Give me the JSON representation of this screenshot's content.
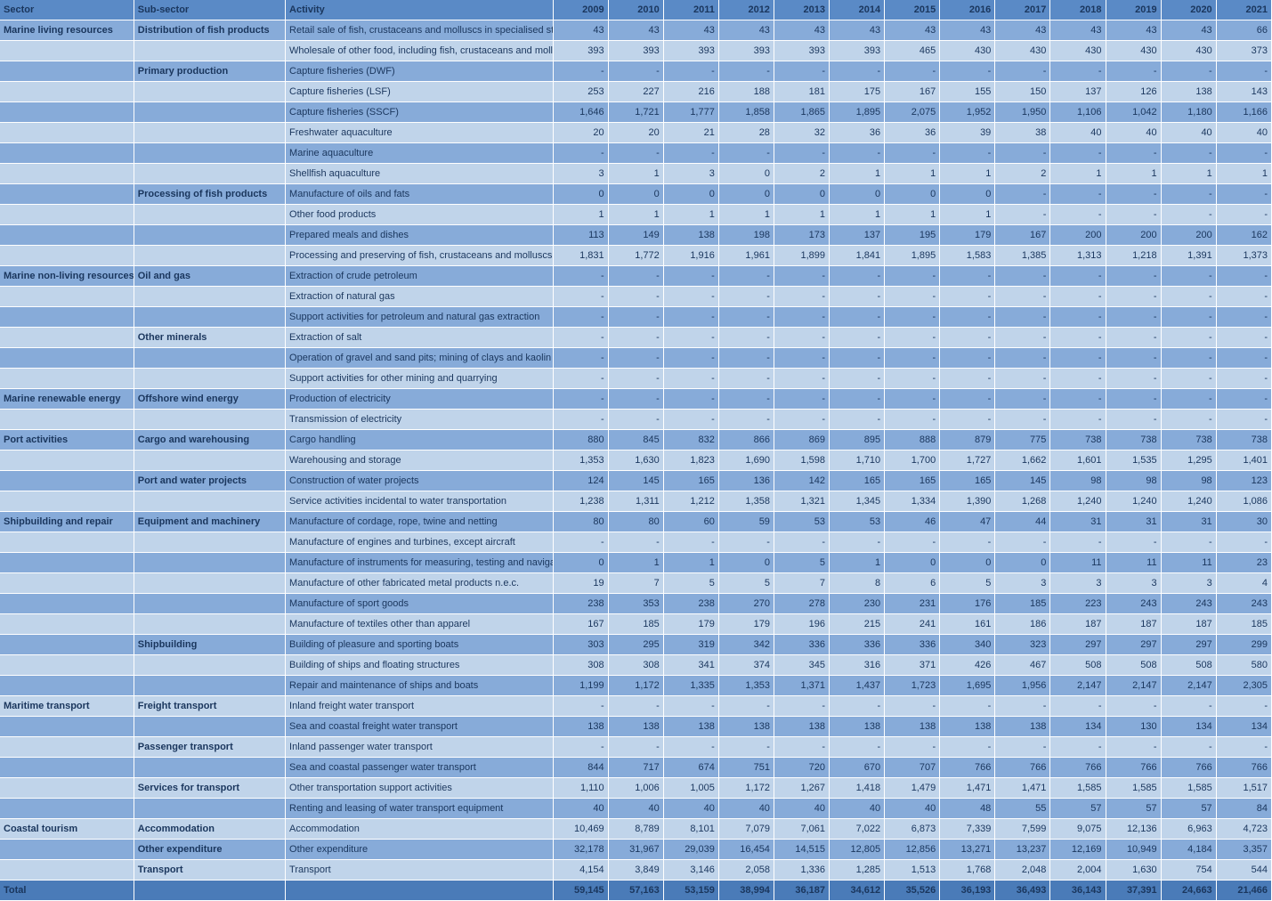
{
  "colors": {
    "header_bg": "#5a8ac6",
    "header_fg": "#1a365d",
    "row_dark_bg": "#87abd9",
    "row_light_bg": "#c0d4ea",
    "total_bg": "#4a7bb8",
    "cell_fg": "#1a365d",
    "bold_fg": "#1a365d"
  },
  "headers": {
    "sector": "Sector",
    "sub": "Sub-sector",
    "activity": "Activity",
    "years": [
      "2009",
      "2010",
      "2011",
      "2012",
      "2013",
      "2014",
      "2015",
      "2016",
      "2017",
      "2018",
      "2019",
      "2020",
      "2021"
    ]
  },
  "rows": [
    {
      "sector": "Marine living resources",
      "sub": "Distribution of fish products",
      "activity": "Retail sale of fish, crustaceans and molluscs in specialised stores",
      "vals": [
        "43",
        "43",
        "43",
        "43",
        "43",
        "43",
        "43",
        "43",
        "43",
        "43",
        "43",
        "43",
        "66"
      ]
    },
    {
      "sector": "",
      "sub": "",
      "activity": "Wholesale of other food, including fish, crustaceans and molluscs",
      "vals": [
        "393",
        "393",
        "393",
        "393",
        "393",
        "393",
        "465",
        "430",
        "430",
        "430",
        "430",
        "430",
        "373"
      ]
    },
    {
      "sector": "",
      "sub": "Primary production",
      "activity": "Capture fisheries (DWF)",
      "vals": [
        "-",
        "-",
        "-",
        "-",
        "-",
        "-",
        "-",
        "-",
        "-",
        "-",
        "-",
        "-",
        "-"
      ]
    },
    {
      "sector": "",
      "sub": "",
      "activity": "Capture fisheries (LSF)",
      "vals": [
        "253",
        "227",
        "216",
        "188",
        "181",
        "175",
        "167",
        "155",
        "150",
        "137",
        "126",
        "138",
        "143"
      ]
    },
    {
      "sector": "",
      "sub": "",
      "activity": "Capture fisheries (SSCF)",
      "vals": [
        "1,646",
        "1,721",
        "1,777",
        "1,858",
        "1,865",
        "1,895",
        "2,075",
        "1,952",
        "1,950",
        "1,106",
        "1,042",
        "1,180",
        "1,166"
      ]
    },
    {
      "sector": "",
      "sub": "",
      "activity": "Freshwater aquaculture",
      "vals": [
        "20",
        "20",
        "21",
        "28",
        "32",
        "36",
        "36",
        "39",
        "38",
        "40",
        "40",
        "40",
        "40"
      ]
    },
    {
      "sector": "",
      "sub": "",
      "activity": "Marine aquaculture",
      "vals": [
        "-",
        "-",
        "-",
        "-",
        "-",
        "-",
        "-",
        "-",
        "-",
        "-",
        "-",
        "-",
        "-"
      ]
    },
    {
      "sector": "",
      "sub": "",
      "activity": "Shellfish aquaculture",
      "vals": [
        "3",
        "1",
        "3",
        "0",
        "2",
        "1",
        "1",
        "1",
        "2",
        "1",
        "1",
        "1",
        "1"
      ]
    },
    {
      "sector": "",
      "sub": "Processing of fish products",
      "activity": "Manufacture of oils and fats",
      "vals": [
        "0",
        "0",
        "0",
        "0",
        "0",
        "0",
        "0",
        "0",
        "-",
        "-",
        "-",
        "-",
        "-"
      ]
    },
    {
      "sector": "",
      "sub": "",
      "activity": "Other food products",
      "vals": [
        "1",
        "1",
        "1",
        "1",
        "1",
        "1",
        "1",
        "1",
        "-",
        "-",
        "-",
        "-",
        "-"
      ]
    },
    {
      "sector": "",
      "sub": "",
      "activity": "Prepared meals and dishes",
      "vals": [
        "113",
        "149",
        "138",
        "198",
        "173",
        "137",
        "195",
        "179",
        "167",
        "200",
        "200",
        "200",
        "162"
      ]
    },
    {
      "sector": "",
      "sub": "",
      "activity": "Processing and preserving of fish, crustaceans and molluscs",
      "vals": [
        "1,831",
        "1,772",
        "1,916",
        "1,961",
        "1,899",
        "1,841",
        "1,895",
        "1,583",
        "1,385",
        "1,313",
        "1,218",
        "1,391",
        "1,373"
      ]
    },
    {
      "sector": "Marine non-living resources",
      "sub": "Oil and gas",
      "activity": "Extraction of crude petroleum",
      "vals": [
        "-",
        "-",
        "-",
        "-",
        "-",
        "-",
        "-",
        "-",
        "-",
        "-",
        "-",
        "-",
        "-"
      ]
    },
    {
      "sector": "",
      "sub": "",
      "activity": "Extraction of natural gas",
      "vals": [
        "-",
        "-",
        "-",
        "-",
        "-",
        "-",
        "-",
        "-",
        "-",
        "-",
        "-",
        "-",
        "-"
      ]
    },
    {
      "sector": "",
      "sub": "",
      "activity": "Support activities for petroleum and natural gas extraction",
      "vals": [
        "-",
        "-",
        "-",
        "-",
        "-",
        "-",
        "-",
        "-",
        "-",
        "-",
        "-",
        "-",
        "-"
      ]
    },
    {
      "sector": "",
      "sub": "Other minerals",
      "activity": "Extraction of salt",
      "vals": [
        "-",
        "-",
        "-",
        "-",
        "-",
        "-",
        "-",
        "-",
        "-",
        "-",
        "-",
        "-",
        "-"
      ]
    },
    {
      "sector": "",
      "sub": "",
      "activity": "Operation of gravel and sand pits; mining of clays and kaolin",
      "vals": [
        "-",
        "-",
        "-",
        "-",
        "-",
        "-",
        "-",
        "-",
        "-",
        "-",
        "-",
        "-",
        "-"
      ]
    },
    {
      "sector": "",
      "sub": "",
      "activity": "Support activities for other mining and quarrying",
      "vals": [
        "-",
        "-",
        "-",
        "-",
        "-",
        "-",
        "-",
        "-",
        "-",
        "-",
        "-",
        "-",
        "-"
      ]
    },
    {
      "sector": "Marine renewable energy",
      "sub": "Offshore wind energy",
      "activity": "Production of electricity",
      "vals": [
        "-",
        "-",
        "-",
        "-",
        "-",
        "-",
        "-",
        "-",
        "-",
        "-",
        "-",
        "-",
        "-"
      ]
    },
    {
      "sector": "",
      "sub": "",
      "activity": "Transmission of electricity",
      "vals": [
        "-",
        "-",
        "-",
        "-",
        "-",
        "-",
        "-",
        "-",
        "-",
        "-",
        "-",
        "-",
        "-"
      ]
    },
    {
      "sector": "Port activities",
      "sub": "Cargo and warehousing",
      "activity": "Cargo handling",
      "vals": [
        "880",
        "845",
        "832",
        "866",
        "869",
        "895",
        "888",
        "879",
        "775",
        "738",
        "738",
        "738",
        "738"
      ]
    },
    {
      "sector": "",
      "sub": "",
      "activity": "Warehousing and storage",
      "vals": [
        "1,353",
        "1,630",
        "1,823",
        "1,690",
        "1,598",
        "1,710",
        "1,700",
        "1,727",
        "1,662",
        "1,601",
        "1,535",
        "1,295",
        "1,401"
      ]
    },
    {
      "sector": "",
      "sub": "Port and water projects",
      "activity": "Construction of water projects",
      "vals": [
        "124",
        "145",
        "165",
        "136",
        "142",
        "165",
        "165",
        "165",
        "145",
        "98",
        "98",
        "98",
        "123"
      ]
    },
    {
      "sector": "",
      "sub": "",
      "activity": "Service activities incidental to water transportation",
      "vals": [
        "1,238",
        "1,311",
        "1,212",
        "1,358",
        "1,321",
        "1,345",
        "1,334",
        "1,390",
        "1,268",
        "1,240",
        "1,240",
        "1,240",
        "1,086"
      ]
    },
    {
      "sector": "Shipbuilding and repair",
      "sub": "Equipment and machinery",
      "activity": "Manufacture of cordage, rope, twine and netting",
      "vals": [
        "80",
        "80",
        "60",
        "59",
        "53",
        "53",
        "46",
        "47",
        "44",
        "31",
        "31",
        "31",
        "30"
      ]
    },
    {
      "sector": "",
      "sub": "",
      "activity": "Manufacture of engines and turbines, except aircraft",
      "vals": [
        "-",
        "-",
        "-",
        "-",
        "-",
        "-",
        "-",
        "-",
        "-",
        "-",
        "-",
        "-",
        "-"
      ]
    },
    {
      "sector": "",
      "sub": "",
      "activity": "Manufacture of instruments for measuring, testing and navigation",
      "vals": [
        "0",
        "1",
        "1",
        "0",
        "5",
        "1",
        "0",
        "0",
        "0",
        "11",
        "11",
        "11",
        "23"
      ]
    },
    {
      "sector": "",
      "sub": "",
      "activity": "Manufacture of other fabricated metal products n.e.c.",
      "vals": [
        "19",
        "7",
        "5",
        "5",
        "7",
        "8",
        "6",
        "5",
        "3",
        "3",
        "3",
        "3",
        "4"
      ]
    },
    {
      "sector": "",
      "sub": "",
      "activity": "Manufacture of sport goods",
      "vals": [
        "238",
        "353",
        "238",
        "270",
        "278",
        "230",
        "231",
        "176",
        "185",
        "223",
        "243",
        "243",
        "243"
      ]
    },
    {
      "sector": "",
      "sub": "",
      "activity": "Manufacture of textiles other than apparel",
      "vals": [
        "167",
        "185",
        "179",
        "179",
        "196",
        "215",
        "241",
        "161",
        "186",
        "187",
        "187",
        "187",
        "185"
      ]
    },
    {
      "sector": "",
      "sub": "Shipbuilding",
      "activity": "Building of pleasure and sporting boats",
      "vals": [
        "303",
        "295",
        "319",
        "342",
        "336",
        "336",
        "336",
        "340",
        "323",
        "297",
        "297",
        "297",
        "299"
      ]
    },
    {
      "sector": "",
      "sub": "",
      "activity": "Building of ships and floating structures",
      "vals": [
        "308",
        "308",
        "341",
        "374",
        "345",
        "316",
        "371",
        "426",
        "467",
        "508",
        "508",
        "508",
        "580"
      ]
    },
    {
      "sector": "",
      "sub": "",
      "activity": "Repair and maintenance of ships and boats",
      "vals": [
        "1,199",
        "1,172",
        "1,335",
        "1,353",
        "1,371",
        "1,437",
        "1,723",
        "1,695",
        "1,956",
        "2,147",
        "2,147",
        "2,147",
        "2,305"
      ]
    },
    {
      "sector": "Maritime transport",
      "sub": "Freight transport",
      "activity": "Inland freight water transport",
      "vals": [
        "-",
        "-",
        "-",
        "-",
        "-",
        "-",
        "-",
        "-",
        "-",
        "-",
        "-",
        "-",
        "-"
      ]
    },
    {
      "sector": "",
      "sub": "",
      "activity": "Sea and coastal freight water transport",
      "vals": [
        "138",
        "138",
        "138",
        "138",
        "138",
        "138",
        "138",
        "138",
        "138",
        "134",
        "130",
        "134",
        "134"
      ]
    },
    {
      "sector": "",
      "sub": "Passenger transport",
      "activity": "Inland passenger water transport",
      "vals": [
        "-",
        "-",
        "-",
        "-",
        "-",
        "-",
        "-",
        "-",
        "-",
        "-",
        "-",
        "-",
        "-"
      ]
    },
    {
      "sector": "",
      "sub": "",
      "activity": "Sea and coastal passenger water transport",
      "vals": [
        "844",
        "717",
        "674",
        "751",
        "720",
        "670",
        "707",
        "766",
        "766",
        "766",
        "766",
        "766",
        "766"
      ]
    },
    {
      "sector": "",
      "sub": "Services for transport",
      "activity": "Other transportation support activities",
      "vals": [
        "1,110",
        "1,006",
        "1,005",
        "1,172",
        "1,267",
        "1,418",
        "1,479",
        "1,471",
        "1,471",
        "1,585",
        "1,585",
        "1,585",
        "1,517"
      ]
    },
    {
      "sector": "",
      "sub": "",
      "activity": "Renting and leasing of water transport equipment",
      "vals": [
        "40",
        "40",
        "40",
        "40",
        "40",
        "40",
        "40",
        "48",
        "55",
        "57",
        "57",
        "57",
        "84"
      ]
    },
    {
      "sector": "Coastal tourism",
      "sub": "Accommodation",
      "activity": "Accommodation",
      "vals": [
        "10,469",
        "8,789",
        "8,101",
        "7,079",
        "7,061",
        "7,022",
        "6,873",
        "7,339",
        "7,599",
        "9,075",
        "12,136",
        "6,963",
        "4,723"
      ]
    },
    {
      "sector": "",
      "sub": "Other expenditure",
      "activity": "Other expenditure",
      "vals": [
        "32,178",
        "31,967",
        "29,039",
        "16,454",
        "14,515",
        "12,805",
        "12,856",
        "13,271",
        "13,237",
        "12,169",
        "10,949",
        "4,184",
        "3,357"
      ]
    },
    {
      "sector": "",
      "sub": "Transport",
      "activity": "Transport",
      "vals": [
        "4,154",
        "3,849",
        "3,146",
        "2,058",
        "1,336",
        "1,285",
        "1,513",
        "1,768",
        "2,048",
        "2,004",
        "1,630",
        "754",
        "544"
      ]
    }
  ],
  "total": {
    "label": "Total",
    "vals": [
      "59,145",
      "57,163",
      "53,159",
      "38,994",
      "36,187",
      "34,612",
      "35,526",
      "36,193",
      "36,493",
      "36,143",
      "37,391",
      "24,663",
      "21,466"
    ]
  }
}
